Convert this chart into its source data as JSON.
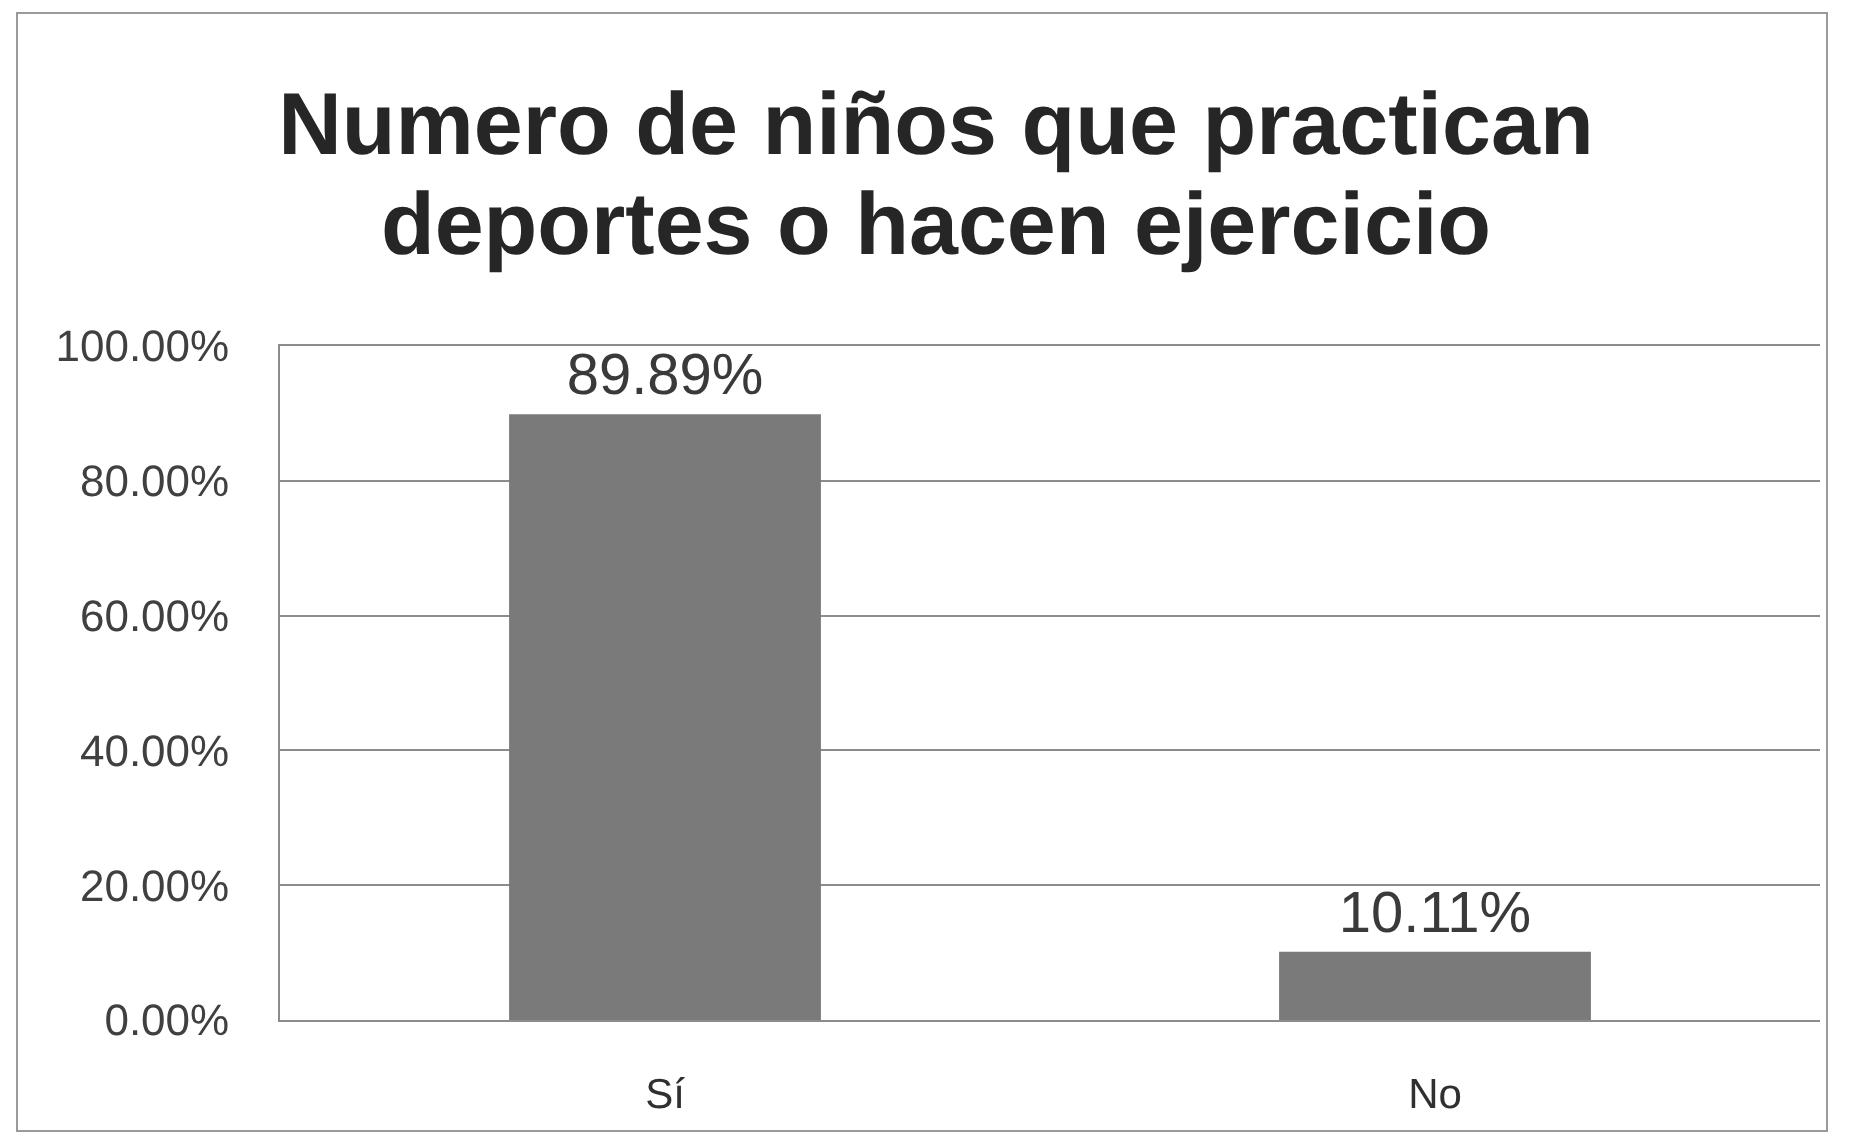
{
  "chart_data": {
    "type": "bar",
    "title": "Numero de niños que practican deportes o hacen ejercicio",
    "categories": [
      "Sí",
      "No"
    ],
    "values": [
      89.89,
      10.11
    ],
    "color": "#7a7a7a",
    "value_labels": [
      "89.89%",
      "10.11%"
    ],
    "ylim": [
      0,
      100
    ],
    "yticks": [
      {
        "value": 0,
        "label": "0.00%"
      },
      {
        "value": 20,
        "label": "20.00%"
      },
      {
        "value": 40,
        "label": "40.00%"
      },
      {
        "value": 60,
        "label": "60.00%"
      },
      {
        "value": 80,
        "label": "80.00%"
      },
      {
        "value": 100,
        "label": "100.00%"
      }
    ],
    "grid": "y"
  }
}
